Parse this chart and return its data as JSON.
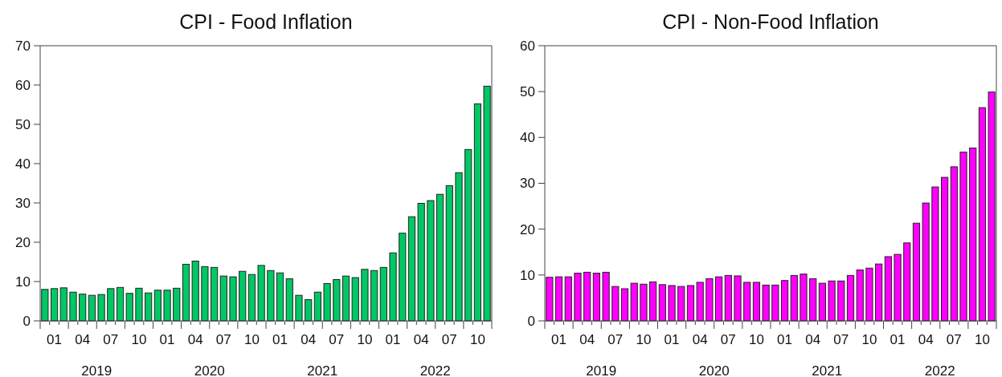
{
  "chart_data": [
    {
      "type": "bar",
      "title": "CPI - Food Inflation",
      "color": "#00c864",
      "ylim": [
        0,
        70
      ],
      "yticks": [
        0,
        10,
        20,
        30,
        40,
        50,
        60,
        70
      ],
      "categories": [
        null,
        "01",
        null,
        null,
        "04",
        null,
        null,
        "07",
        null,
        null,
        "10",
        null,
        null,
        "01",
        null,
        null,
        "04",
        null,
        null,
        "07",
        null,
        null,
        "10",
        null,
        null,
        "01",
        null,
        null,
        "04",
        null,
        null,
        "07",
        null,
        null,
        "10",
        null,
        null,
        "01",
        null,
        null,
        "04",
        null,
        null,
        "07",
        null,
        null,
        "10",
        null
      ],
      "values": [
        8.0,
        8.2,
        8.4,
        7.3,
        6.8,
        6.5,
        6.7,
        8.2,
        8.5,
        7.0,
        8.3,
        7.1,
        7.8,
        7.8,
        8.3,
        14.4,
        15.2,
        13.8,
        13.6,
        11.4,
        11.2,
        12.6,
        11.8,
        14.1,
        12.8,
        12.2,
        10.7,
        6.5,
        5.4,
        7.3,
        9.5,
        10.5,
        11.4,
        11.0,
        13.1,
        12.8,
        13.6,
        17.3,
        22.3,
        26.5,
        29.9,
        30.6,
        32.2,
        34.4,
        37.7,
        43.6,
        55.2,
        59.7
      ],
      "annotations": [
        "2019",
        "2020",
        "2021",
        "2022"
      ]
    },
    {
      "type": "bar",
      "title": "CPI - Non-Food Inflation",
      "color": "#ff00ff",
      "ylim": [
        0,
        60
      ],
      "yticks": [
        0,
        10,
        20,
        30,
        40,
        50,
        60
      ],
      "categories": [
        null,
        "01",
        null,
        null,
        "04",
        null,
        null,
        "07",
        null,
        null,
        "10",
        null,
        null,
        "01",
        null,
        null,
        "04",
        null,
        null,
        "07",
        null,
        null,
        "10",
        null,
        null,
        "01",
        null,
        null,
        "04",
        null,
        null,
        "07",
        null,
        null,
        "10",
        null,
        null,
        "01",
        null,
        null,
        "04",
        null,
        null,
        "07",
        null,
        null,
        "10",
        null
      ],
      "values": [
        9.5,
        9.6,
        9.6,
        10.4,
        10.6,
        10.4,
        10.6,
        7.5,
        7.0,
        8.2,
        8.0,
        8.5,
        7.9,
        7.7,
        7.5,
        7.7,
        8.4,
        9.2,
        9.6,
        9.9,
        9.8,
        8.4,
        8.4,
        7.8,
        7.8,
        8.8,
        9.9,
        10.2,
        9.2,
        8.2,
        8.7,
        8.7,
        9.9,
        11.1,
        11.5,
        12.4,
        14.0,
        14.5,
        17.0,
        21.3,
        25.7,
        29.2,
        31.3,
        33.6,
        36.8,
        37.7,
        46.5,
        49.9
      ],
      "annotations": [
        "2019",
        "2020",
        "2021",
        "2022"
      ]
    }
  ]
}
